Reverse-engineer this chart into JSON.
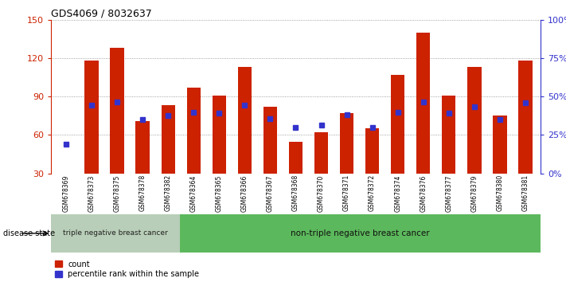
{
  "title": "GDS4069 / 8032637",
  "samples": [
    "GSM678369",
    "GSM678373",
    "GSM678375",
    "GSM678378",
    "GSM678382",
    "GSM678364",
    "GSM678365",
    "GSM678366",
    "GSM678367",
    "GSM678368",
    "GSM678370",
    "GSM678371",
    "GSM678372",
    "GSM678374",
    "GSM678376",
    "GSM678377",
    "GSM678379",
    "GSM678380",
    "GSM678381"
  ],
  "bar_heights": [
    30,
    118,
    128,
    71,
    83,
    97,
    91,
    113,
    82,
    55,
    62,
    77,
    65,
    107,
    140,
    91,
    113,
    75,
    118
  ],
  "blue_left_vals": [
    53,
    83,
    86,
    72,
    75,
    78,
    77,
    83,
    73,
    66,
    68,
    76,
    66,
    78,
    86,
    77,
    82,
    72,
    85
  ],
  "ylim_left": [
    30,
    150
  ],
  "yticks_left": [
    30,
    60,
    90,
    120,
    150
  ],
  "ytick_labels_right": [
    "0%",
    "25%",
    "50%",
    "75%",
    "100%"
  ],
  "ytick_vals_right_left_scale": [
    30,
    60,
    90,
    120,
    150
  ],
  "bar_color": "#cc2200",
  "blue_color": "#3333cc",
  "group1_label": "triple negative breast cancer",
  "group2_label": "non-triple negative breast cancer",
  "group1_count": 5,
  "group2_count": 14,
  "disease_state_label": "disease state",
  "legend_count": "count",
  "legend_percentile": "percentile rank within the sample",
  "group1_color": "#b8ceb8",
  "group2_color": "#5cb85c"
}
